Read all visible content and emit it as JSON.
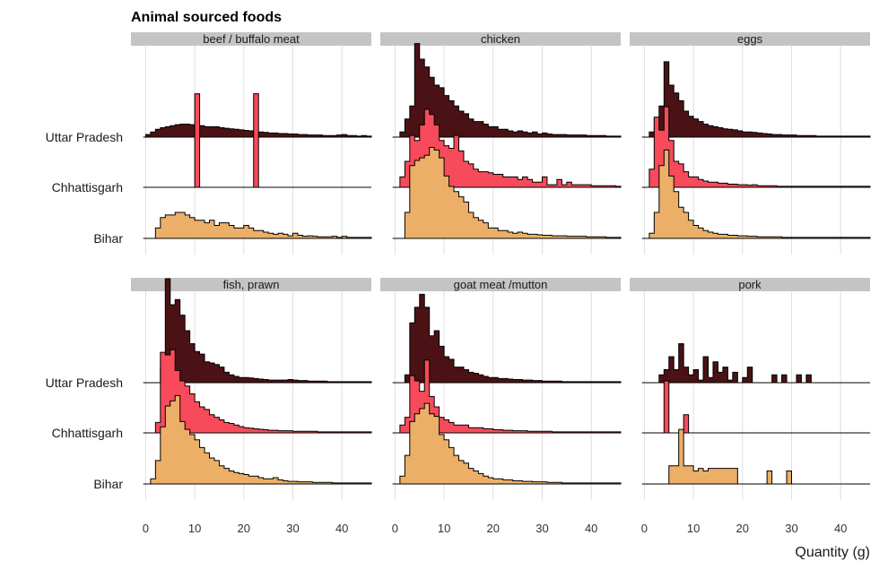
{
  "chart_data": {
    "type": "ridgeline-histogram",
    "title": "Animal sourced foods",
    "xlabel": "Quantity (g)",
    "ylabel": "",
    "xlim": [
      -3,
      46
    ],
    "xticks": [
      0,
      10,
      20,
      30,
      40
    ],
    "binwidth": 1,
    "grid": true,
    "rows": [
      "Uttar Pradesh",
      "Chhattisgarh",
      "Bihar"
    ],
    "colors": {
      "Uttar Pradesh": "#4a1214",
      "Chhattisgarh": "#f74a5a",
      "Bihar": "#ebaf67"
    },
    "panels": [
      {
        "name": "beef / buffalo meat",
        "series": [
          {
            "row": "Uttar Pradesh",
            "x_start": 0,
            "values": [
              0.05,
              0.1,
              0.15,
              0.18,
              0.2,
              0.22,
              0.24,
              0.25,
              0.25,
              0.24,
              0.23,
              0.22,
              0.2,
              0.2,
              0.2,
              0.18,
              0.17,
              0.16,
              0.15,
              0.14,
              0.13,
              0.12,
              0.1,
              0.1,
              0.09,
              0.08,
              0.08,
              0.07,
              0.07,
              0.06,
              0.06,
              0.05,
              0.05,
              0.04,
              0.04,
              0.04,
              0.03,
              0.03,
              0.03,
              0.04,
              0.05,
              0.03,
              0.03,
              0.02,
              0.03,
              0.02
            ]
          },
          {
            "row": "Chhattisgarh",
            "x_start": 0,
            "values": [
              0,
              0,
              0,
              0,
              0,
              0,
              0,
              0,
              0,
              0,
              1.8,
              0,
              0,
              0,
              0,
              0,
              0,
              0,
              0,
              0,
              0,
              0,
              1.8,
              0,
              0,
              0,
              0,
              0,
              0,
              0,
              0,
              0,
              0,
              0,
              0,
              0,
              0,
              0,
              0,
              0,
              0,
              0,
              0,
              0,
              0,
              0
            ]
          },
          {
            "row": "Bihar",
            "x_start": 0,
            "values": [
              0,
              0,
              0.2,
              0.4,
              0.45,
              0.45,
              0.5,
              0.5,
              0.45,
              0.4,
              0.35,
              0.35,
              0.3,
              0.35,
              0.25,
              0.3,
              0.3,
              0.25,
              0.2,
              0.2,
              0.25,
              0.2,
              0.15,
              0.15,
              0.12,
              0.1,
              0.08,
              0.1,
              0.08,
              0.05,
              0.1,
              0.06,
              0.04,
              0.05,
              0.04,
              0.03,
              0.03,
              0.03,
              0.04,
              0.02,
              0.04,
              0.02,
              0.02,
              0.02,
              0.02,
              0.02
            ]
          }
        ]
      },
      {
        "name": "chicken",
        "series": [
          {
            "row": "Uttar Pradesh",
            "x_start": 0,
            "values": [
              0,
              0.1,
              0.35,
              0.6,
              1.8,
              1.5,
              1.35,
              1.15,
              1.0,
              0.95,
              0.8,
              0.7,
              0.6,
              0.5,
              0.45,
              0.35,
              0.3,
              0.3,
              0.25,
              0.2,
              0.2,
              0.15,
              0.15,
              0.12,
              0.1,
              0.12,
              0.1,
              0.08,
              0.1,
              0.06,
              0.08,
              0.06,
              0.05,
              0.05,
              0.05,
              0.04,
              0.04,
              0.04,
              0.04,
              0.03,
              0.03,
              0.03,
              0.03,
              0.02,
              0.02,
              0.02
            ]
          },
          {
            "row": "Chhattisgarh",
            "x_start": 0,
            "values": [
              0,
              0.2,
              0.5,
              1.0,
              0.9,
              1.2,
              1.5,
              1.4,
              1.2,
              0.9,
              0.8,
              0.75,
              1.0,
              0.7,
              0.5,
              0.45,
              0.35,
              0.3,
              0.3,
              0.28,
              0.25,
              0.25,
              0.2,
              0.2,
              0.2,
              0.15,
              0.2,
              0.15,
              0.1,
              0.1,
              0.2,
              0.05,
              0.05,
              0.15,
              0.05,
              0.1,
              0.05,
              0.05,
              0.05,
              0.05,
              0.03,
              0.03,
              0.03,
              0.03,
              0.03,
              0.02
            ]
          },
          {
            "row": "Bihar",
            "x_start": 0,
            "values": [
              0,
              0,
              0.5,
              1.4,
              1.5,
              1.55,
              1.6,
              1.75,
              1.7,
              1.55,
              1.2,
              1.0,
              0.9,
              0.8,
              0.7,
              0.5,
              0.4,
              0.35,
              0.3,
              0.2,
              0.2,
              0.15,
              0.15,
              0.12,
              0.1,
              0.12,
              0.1,
              0.08,
              0.08,
              0.07,
              0.06,
              0.06,
              0.05,
              0.05,
              0.05,
              0.04,
              0.04,
              0.04,
              0.04,
              0.03,
              0.03,
              0.03,
              0.03,
              0.02,
              0.02,
              0.02
            ]
          }
        ]
      },
      {
        "name": "eggs",
        "series": [
          {
            "row": "Uttar Pradesh",
            "x_start": 0,
            "values": [
              0,
              0.1,
              0.35,
              0.6,
              1.45,
              1.0,
              0.85,
              0.7,
              0.5,
              0.4,
              0.35,
              0.3,
              0.25,
              0.22,
              0.2,
              0.18,
              0.16,
              0.15,
              0.14,
              0.12,
              0.1,
              0.1,
              0.09,
              0.08,
              0.07,
              0.06,
              0.05,
              0.05,
              0.04,
              0.04,
              0.04,
              0.03,
              0.03,
              0.03,
              0.03,
              0.02,
              0.02,
              0.02,
              0.02,
              0.02,
              0.02,
              0.02,
              0.02,
              0.02,
              0.02,
              0.02
            ]
          },
          {
            "row": "Chhattisgarh",
            "x_start": 0,
            "values": [
              0,
              0.35,
              1.35,
              1.1,
              1.55,
              0.9,
              0.5,
              0.45,
              0.3,
              0.2,
              0.2,
              0.15,
              0.12,
              0.1,
              0.1,
              0.08,
              0.08,
              0.06,
              0.06,
              0.05,
              0.05,
              0.04,
              0.05,
              0.03,
              0.03,
              0.03,
              0.03,
              0.02,
              0.02,
              0.02,
              0.02,
              0.02,
              0.02,
              0.02,
              0.02,
              0.02,
              0.02,
              0.02,
              0.02,
              0.02,
              0.02,
              0.02,
              0.02,
              0.02,
              0.02,
              0.02
            ]
          },
          {
            "row": "Bihar",
            "x_start": 0,
            "values": [
              0,
              0.1,
              0.5,
              1.4,
              1.7,
              1.2,
              0.9,
              0.6,
              0.5,
              0.35,
              0.25,
              0.2,
              0.15,
              0.12,
              0.1,
              0.08,
              0.08,
              0.06,
              0.06,
              0.05,
              0.05,
              0.04,
              0.04,
              0.03,
              0.03,
              0.03,
              0.03,
              0.03,
              0.02,
              0.02,
              0.02,
              0.02,
              0.02,
              0.02,
              0.02,
              0.02,
              0.02,
              0.02,
              0.02,
              0.02,
              0.02,
              0.02,
              0.02,
              0.02,
              0.02,
              0.02
            ]
          }
        ]
      },
      {
        "name": "fish, prawn",
        "series": [
          {
            "row": "Uttar Pradesh",
            "x_start": 0,
            "values": [
              0,
              0,
              0,
              0.3,
              2.0,
              1.5,
              1.6,
              1.3,
              1.0,
              0.75,
              0.6,
              0.55,
              0.4,
              0.38,
              0.35,
              0.3,
              0.2,
              0.15,
              0.12,
              0.1,
              0.1,
              0.09,
              0.08,
              0.07,
              0.06,
              0.05,
              0.05,
              0.05,
              0.05,
              0.06,
              0.05,
              0.04,
              0.04,
              0.03,
              0.03,
              0.03,
              0.03,
              0.02,
              0.02,
              0.02,
              0.02,
              0.02,
              0.02,
              0.02,
              0.02,
              0.02
            ]
          },
          {
            "row": "Chhattisgarh",
            "x_start": 0,
            "values": [
              0,
              0,
              0.2,
              1.55,
              1.5,
              1.6,
              1.2,
              1.0,
              0.9,
              0.75,
              0.6,
              0.5,
              0.45,
              0.35,
              0.3,
              0.25,
              0.2,
              0.18,
              0.15,
              0.12,
              0.1,
              0.09,
              0.08,
              0.07,
              0.06,
              0.05,
              0.05,
              0.04,
              0.04,
              0.04,
              0.03,
              0.03,
              0.03,
              0.03,
              0.03,
              0.02,
              0.02,
              0.02,
              0.02,
              0.02,
              0.02,
              0.02,
              0.02,
              0.02,
              0.02,
              0.02
            ]
          },
          {
            "row": "Bihar",
            "x_start": 0,
            "values": [
              0,
              0.1,
              0.45,
              1.1,
              1.5,
              1.6,
              1.7,
              1.2,
              1.05,
              0.95,
              0.85,
              0.7,
              0.6,
              0.5,
              0.45,
              0.35,
              0.3,
              0.25,
              0.22,
              0.2,
              0.18,
              0.15,
              0.15,
              0.12,
              0.1,
              0.1,
              0.12,
              0.08,
              0.06,
              0.05,
              0.05,
              0.04,
              0.04,
              0.04,
              0.03,
              0.03,
              0.03,
              0.03,
              0.02,
              0.02,
              0.02,
              0.02,
              0.02,
              0.02,
              0.02,
              0.02
            ]
          }
        ]
      },
      {
        "name": "goat meat /mutton",
        "series": [
          {
            "row": "Uttar Pradesh",
            "x_start": 0,
            "values": [
              0,
              0,
              0.15,
              1.15,
              1.45,
              1.7,
              1.45,
              0.9,
              1.0,
              0.7,
              0.5,
              0.45,
              0.3,
              0.3,
              0.25,
              0.2,
              0.18,
              0.15,
              0.12,
              0.1,
              0.1,
              0.08,
              0.08,
              0.07,
              0.06,
              0.06,
              0.05,
              0.05,
              0.04,
              0.04,
              0.03,
              0.03,
              0.03,
              0.03,
              0.02,
              0.02,
              0.02,
              0.02,
              0.02,
              0.02,
              0.02,
              0.02,
              0.02,
              0.02,
              0.02,
              0.02
            ]
          },
          {
            "row": "Chhattisgarh",
            "x_start": 0,
            "values": [
              0,
              0.15,
              0.3,
              1.1,
              1.0,
              0.8,
              1.4,
              0.7,
              0.5,
              0.3,
              0.25,
              0.2,
              0.15,
              0.15,
              0.15,
              0.1,
              0.1,
              0.1,
              0.08,
              0.08,
              0.06,
              0.06,
              0.05,
              0.05,
              0.04,
              0.04,
              0.04,
              0.03,
              0.03,
              0.03,
              0.03,
              0.03,
              0.02,
              0.02,
              0.02,
              0.02,
              0.02,
              0.02,
              0.02,
              0.02,
              0.02,
              0.02,
              0.02,
              0.02,
              0.02,
              0.02
            ]
          },
          {
            "row": "Bihar",
            "x_start": 0,
            "values": [
              0,
              0.15,
              0.55,
              1.2,
              1.35,
              1.45,
              1.55,
              1.35,
              1.3,
              0.95,
              0.85,
              0.7,
              0.55,
              0.45,
              0.4,
              0.3,
              0.25,
              0.2,
              0.15,
              0.12,
              0.1,
              0.1,
              0.08,
              0.08,
              0.06,
              0.06,
              0.05,
              0.05,
              0.04,
              0.04,
              0.04,
              0.03,
              0.03,
              0.03,
              0.02,
              0.02,
              0.02,
              0.02,
              0.02,
              0.02,
              0.02,
              0.02,
              0.02,
              0.02,
              0.02,
              0.02
            ]
          }
        ]
      },
      {
        "name": "pork",
        "series": [
          {
            "row": "Uttar Pradesh",
            "x_start": 0,
            "values": [
              0,
              0,
              0,
              0.15,
              0.25,
              0.5,
              0.25,
              0.75,
              0.3,
              0.15,
              0.25,
              0.05,
              0.5,
              0.1,
              0.4,
              0.2,
              0.3,
              0.05,
              0.2,
              0,
              0.1,
              0.3,
              0,
              0,
              0,
              0,
              0.15,
              0,
              0.15,
              0,
              0,
              0.15,
              0,
              0.15,
              0,
              0,
              0,
              0,
              0,
              0,
              0,
              0,
              0,
              0,
              0,
              0
            ]
          },
          {
            "row": "Chhattisgarh",
            "x_start": 0,
            "values": [
              0,
              0,
              0,
              0,
              1.0,
              0,
              0,
              0,
              0.35,
              0,
              0,
              0,
              0,
              0,
              0,
              0,
              0,
              0,
              0,
              0,
              0,
              0,
              0,
              0,
              0,
              0,
              0,
              0,
              0,
              0,
              0,
              0,
              0,
              0,
              0,
              0,
              0,
              0,
              0,
              0,
              0,
              0,
              0,
              0,
              0,
              0
            ]
          },
          {
            "row": "Bihar",
            "x_start": 0,
            "values": [
              0,
              0,
              0,
              0,
              0,
              0.35,
              0.35,
              1.05,
              0.35,
              0.35,
              0.25,
              0.3,
              0.25,
              0.3,
              0.3,
              0.3,
              0.3,
              0.3,
              0.3,
              0,
              0,
              0,
              0,
              0,
              0,
              0.25,
              0,
              0,
              0,
              0.25,
              0,
              0,
              0,
              0,
              0,
              0,
              0,
              0,
              0,
              0,
              0,
              0,
              0,
              0,
              0,
              0
            ]
          }
        ]
      }
    ]
  }
}
